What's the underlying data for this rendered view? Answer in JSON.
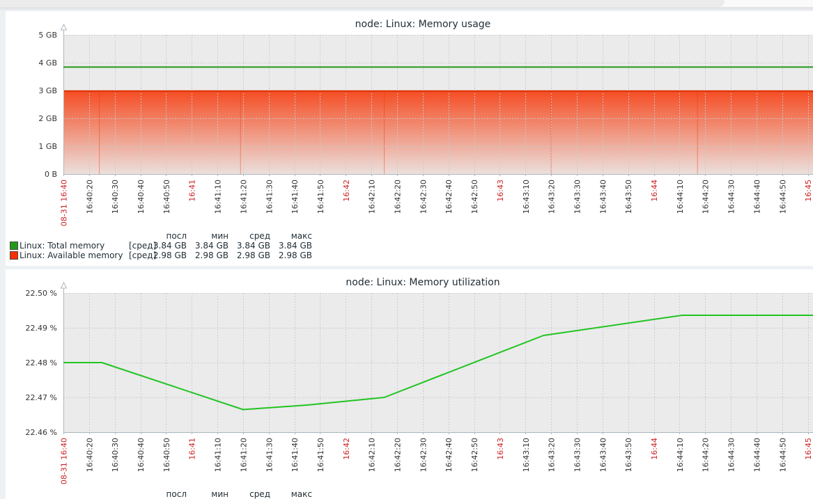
{
  "page": {
    "colors": {
      "background": "#eef1f4",
      "panel": "#ffffff",
      "plot_bg": "#ebebeb",
      "grid": "#c5cbd0",
      "axis": "#a9b6bd",
      "text": "#1f2c33",
      "tick_red": "#cc2222",
      "tab_strip": "#ececec",
      "divider": "#e3e5e8"
    }
  },
  "chart_data": [
    {
      "type": "line",
      "title": "node: Linux: Memory usage",
      "xlabel": "",
      "ylabel": "",
      "ylim": [
        0,
        5
      ],
      "y_unit": "GB",
      "grid": true,
      "y_axis": {
        "min": 0,
        "max": 5,
        "ticks": [
          {
            "label": "5 GB",
            "value": 5
          },
          {
            "label": "4 GB",
            "value": 4
          },
          {
            "label": "3 GB",
            "value": 3
          },
          {
            "label": "2 GB",
            "value": 2
          },
          {
            "label": "1 GB",
            "value": 1
          },
          {
            "label": "0 B",
            "value": 0
          }
        ]
      },
      "x_axis": {
        "start": "16:40:10",
        "span_s": 292,
        "tick_interval_s": 10,
        "ticks": [
          {
            "label": "08-31 16:40",
            "red": true
          },
          {
            "label": "16:40:20",
            "red": false
          },
          {
            "label": "16:40:30",
            "red": false
          },
          {
            "label": "16:40:40",
            "red": false
          },
          {
            "label": "16:40:50",
            "red": false
          },
          {
            "label": "16:41",
            "red": true
          },
          {
            "label": "16:41:10",
            "red": false
          },
          {
            "label": "16:41:20",
            "red": false
          },
          {
            "label": "16:41:30",
            "red": false
          },
          {
            "label": "16:41:40",
            "red": false
          },
          {
            "label": "16:41:50",
            "red": false
          },
          {
            "label": "16:42",
            "red": true
          },
          {
            "label": "16:42:10",
            "red": false
          },
          {
            "label": "16:42:20",
            "red": false
          },
          {
            "label": "16:42:30",
            "red": false
          },
          {
            "label": "16:42:40",
            "red": false
          },
          {
            "label": "16:42:50",
            "red": false
          },
          {
            "label": "16:43",
            "red": true
          },
          {
            "label": "16:43:10",
            "red": false
          },
          {
            "label": "16:43:20",
            "red": false
          },
          {
            "label": "16:43:30",
            "red": false
          },
          {
            "label": "16:43:40",
            "red": false
          },
          {
            "label": "16:43:50",
            "red": false
          },
          {
            "label": "16:44",
            "red": true
          },
          {
            "label": "16:44:10",
            "red": false
          },
          {
            "label": "16:44:20",
            "red": false
          },
          {
            "label": "16:44:30",
            "red": false
          },
          {
            "label": "16:44:40",
            "red": false
          },
          {
            "label": "16:44:50",
            "red": false
          },
          {
            "label": "16:45",
            "red": true
          }
        ]
      },
      "series": [
        {
          "name": "Linux: Available memory",
          "render": "gradient-area",
          "color": "#f63100",
          "border": "#dd2e00",
          "points": [
            [
              "16:40:10",
              2.98
            ],
            [
              "16:45:02",
              2.98
            ]
          ],
          "seams": [
            "16:40:24",
            "16:41:19",
            "16:42:15",
            "16:43:20",
            "16:44:17"
          ]
        },
        {
          "name": "Linux: Total memory",
          "render": "line",
          "color": "#239a18",
          "points": [
            [
              "16:40:10",
              3.84
            ],
            [
              "16:45:02",
              3.84
            ]
          ]
        }
      ],
      "legend": {
        "headers": [
          "посл",
          "мин",
          "сред",
          "макс"
        ],
        "rows": [
          {
            "swatch": "#239a18",
            "label": "Linux: Total memory",
            "func": "[сред]",
            "values": [
              "3.84 GB",
              "3.84 GB",
              "3.84 GB",
              "3.84 GB"
            ]
          },
          {
            "swatch": "#f63100",
            "label": "Linux: Available memory",
            "func": "[сред]",
            "values": [
              "2.98 GB",
              "2.98 GB",
              "2.98 GB",
              "2.98 GB"
            ]
          }
        ]
      }
    },
    {
      "type": "line",
      "title": "node: Linux: Memory utilization",
      "xlabel": "",
      "ylabel": "",
      "ylim": [
        22.46,
        22.5
      ],
      "y_unit": "%",
      "grid": true,
      "y_axis": {
        "min": 22.46,
        "max": 22.5,
        "ticks": [
          {
            "label": "22.50 %",
            "value": 22.5
          },
          {
            "label": "22.49 %",
            "value": 22.49
          },
          {
            "label": "22.48 %",
            "value": 22.48
          },
          {
            "label": "22.47 %",
            "value": 22.47
          },
          {
            "label": "22.46 %",
            "value": 22.46
          }
        ]
      },
      "x_axis": {
        "start": "16:40:10",
        "span_s": 292,
        "tick_interval_s": 10,
        "ticks": [
          {
            "label": "08-31 16:40",
            "red": true
          },
          {
            "label": "16:40:20",
            "red": false
          },
          {
            "label": "16:40:30",
            "red": false
          },
          {
            "label": "16:40:40",
            "red": false
          },
          {
            "label": "16:40:50",
            "red": false
          },
          {
            "label": "16:41",
            "red": true
          },
          {
            "label": "16:41:10",
            "red": false
          },
          {
            "label": "16:41:20",
            "red": false
          },
          {
            "label": "16:41:30",
            "red": false
          },
          {
            "label": "16:41:40",
            "red": false
          },
          {
            "label": "16:41:50",
            "red": false
          },
          {
            "label": "16:42",
            "red": true
          },
          {
            "label": "16:42:10",
            "red": false
          },
          {
            "label": "16:42:20",
            "red": false
          },
          {
            "label": "16:42:30",
            "red": false
          },
          {
            "label": "16:42:40",
            "red": false
          },
          {
            "label": "16:42:50",
            "red": false
          },
          {
            "label": "16:43",
            "red": true
          },
          {
            "label": "16:43:10",
            "red": false
          },
          {
            "label": "16:43:20",
            "red": false
          },
          {
            "label": "16:43:30",
            "red": false
          },
          {
            "label": "16:43:40",
            "red": false
          },
          {
            "label": "16:43:50",
            "red": false
          },
          {
            "label": "16:44",
            "red": true
          },
          {
            "label": "16:44:10",
            "red": false
          },
          {
            "label": "16:44:20",
            "red": false
          },
          {
            "label": "16:44:30",
            "red": false
          },
          {
            "label": "16:44:40",
            "red": false
          },
          {
            "label": "16:44:50",
            "red": false
          },
          {
            "label": "16:45",
            "red": true
          }
        ]
      },
      "series": [
        {
          "name": "Linux: Memory utilization",
          "render": "line",
          "color": "#21c421",
          "points": [
            [
              "16:40:10",
              22.48
            ],
            [
              "16:40:25",
              22.48
            ],
            [
              "16:41:20",
              22.4665
            ],
            [
              "16:41:45",
              22.4678
            ],
            [
              "16:42:15",
              22.47
            ],
            [
              "16:43:17",
              22.4878
            ],
            [
              "16:44:11",
              22.4936
            ],
            [
              "16:45:02",
              22.4936
            ]
          ]
        }
      ],
      "legend": {
        "headers": [
          "посл",
          "мин",
          "сред",
          "макс"
        ],
        "rows": []
      }
    }
  ]
}
